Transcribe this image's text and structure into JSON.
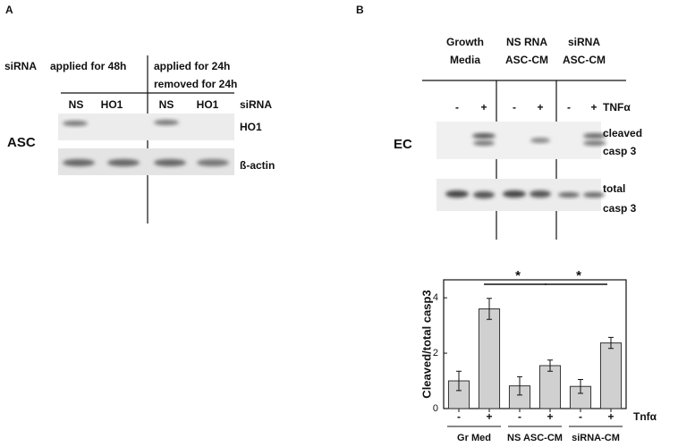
{
  "panel_a": {
    "label": "A",
    "row_label": "siRNA",
    "group_1": "applied for 48h",
    "group_2_line_1": "applied for 24h",
    "group_2_line_2": "removed for 24h",
    "lanes": [
      "NS",
      "HO1",
      "NS",
      "HO1"
    ],
    "lane_label": "siRNA",
    "cell_label": "ASC",
    "blots": [
      "HO1",
      "ß-actin"
    ]
  },
  "panel_b": {
    "label": "B",
    "headers": [
      [
        "Growth",
        "Media"
      ],
      [
        "NS RNA",
        "ASC-CM"
      ],
      [
        "siRNA",
        "ASC-CM"
      ]
    ],
    "lanes": [
      "-",
      "+",
      "-",
      "+",
      "-",
      "+"
    ],
    "lane_label": "TNFα",
    "cell_label": "EC",
    "blots": [
      [
        "cleaved",
        "casp 3"
      ],
      [
        "total",
        "casp 3"
      ]
    ]
  },
  "chart_data": {
    "type": "bar",
    "y_label": "Cleaved/total casp3",
    "categories": [
      "-",
      "+",
      "-",
      "+",
      "-",
      "+"
    ],
    "groups": [
      "Gr Med",
      "NS ASC-CM",
      "siRNA-CM"
    ],
    "treatment_label": "Tnfα",
    "values": [
      1.0,
      3.6,
      0.82,
      1.55,
      0.8,
      2.37
    ],
    "errors": [
      0.35,
      0.38,
      0.33,
      0.2,
      0.25,
      0.2
    ],
    "color": "#d0d0d0",
    "ylim": [
      0,
      4.65
    ],
    "yticks": [
      0,
      2,
      4
    ],
    "annotations": [
      "*",
      "*"
    ]
  }
}
